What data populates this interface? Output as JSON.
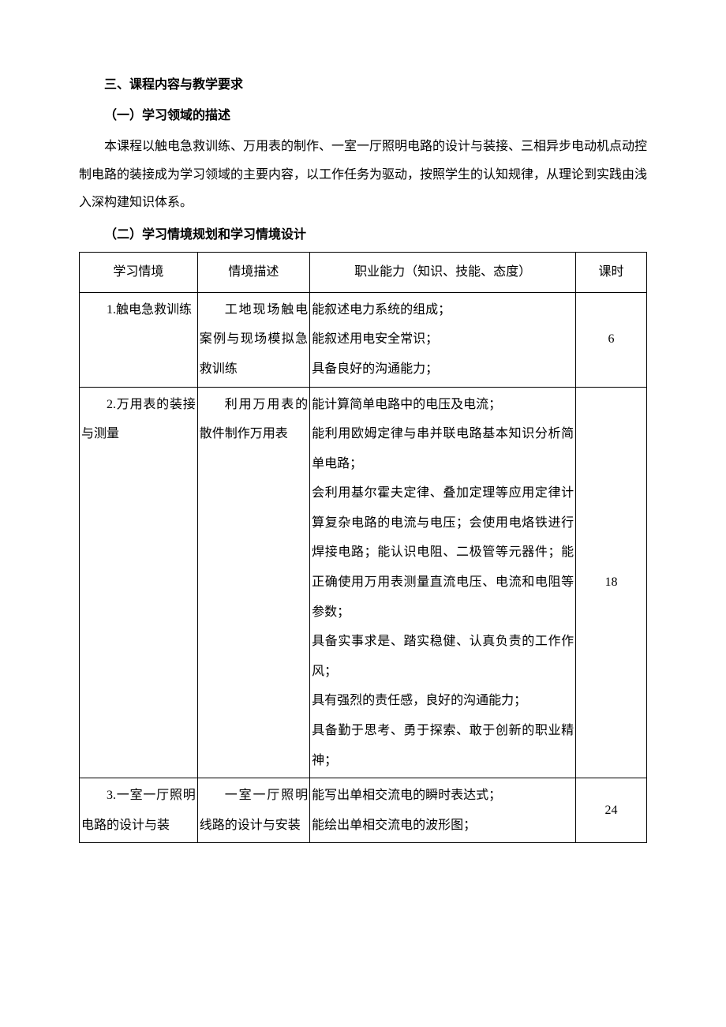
{
  "section_heading": "三、课程内容与教学要求",
  "sub1_heading": "（一）学习领域的描述",
  "paragraph": "本课程以触电急救训练、万用表的制作、一室一厅照明电路的设计与装接、三相异步电动机点动控制电路的装接成为学习领域的主要内容，以工作任务为驱动，按照学生的认知规律，从理论到实践由浅入深构建知识体系。",
  "sub2_heading": "（二）学习情境规划和学习情境设计",
  "table": {
    "columns": [
      "学习情境",
      "情境描述",
      "职业能力（知识、技能、态度）",
      "课时"
    ],
    "rows": [
      {
        "situation": "1.触电急救训练",
        "description": "工地现场触电案例与现场模拟急救训练",
        "ability": "能叙述电力系统的组成；\n能叙述用电安全常识；\n具备良好的沟通能力；",
        "hours": "6"
      },
      {
        "situation": "2.万用表的装接与测量",
        "description": "利用万用表的散件制作万用表",
        "ability": "能计算简单电路中的电压及电流；\n能利用欧姆定律与串并联电路基本知识分析简单电路；\n会利用基尔霍夫定律、叠加定理等应用定律计算复杂电路的电流与电压；会使用电烙铁进行焊接电路；能认识电阻、二极管等元器件；能正确使用万用表测量直流电压、电流和电阻等参数；\n具备实事求是、踏实稳健、认真负责的工作作风；\n具有强烈的责任感，良好的沟通能力；\n具备勤于思考、勇于探索、敢于创新的职业精神；",
        "hours": "18"
      },
      {
        "situation": "3.一室一厅照明电路的设计与装",
        "description": "一室一厅照明线路的设计与安装",
        "ability": "能写出单相交流电的瞬时表达式；\n能绘出单相交流电的波形图；",
        "hours": "24"
      }
    ]
  }
}
